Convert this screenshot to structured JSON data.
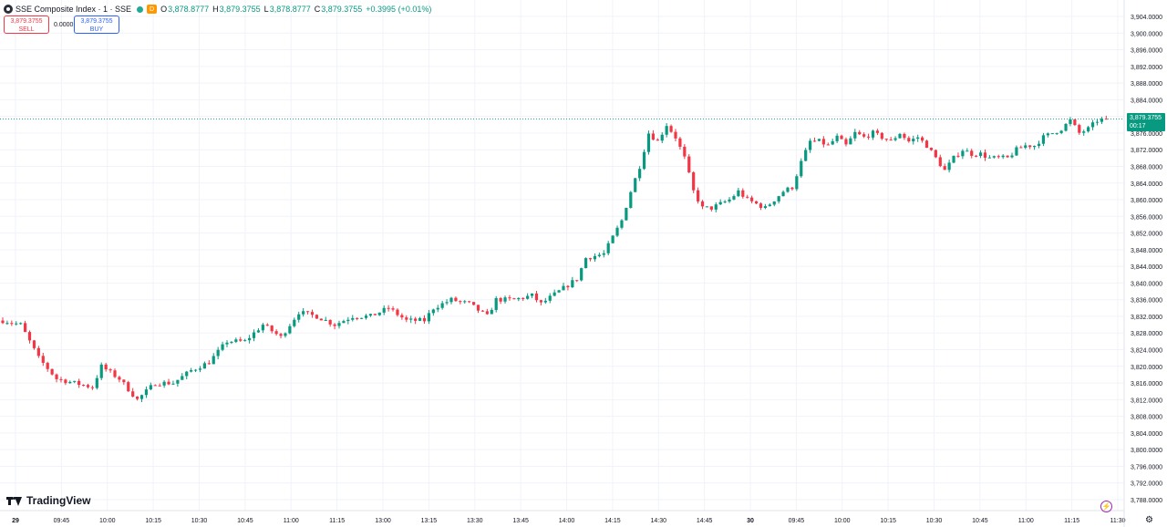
{
  "header": {
    "symbol": "SSE Composite Index · 1 · SSE",
    "d_badge": "D",
    "o_label": "O",
    "o_value": "3,878.8777",
    "h_label": "H",
    "h_value": "3,879.3755",
    "l_label": "L",
    "l_value": "3,878.8777",
    "c_label": "C",
    "c_value": "3,879.3755",
    "change": "+0.3995 (+0.01%)"
  },
  "trade": {
    "sell_price": "3,879.3755",
    "sell_label": "SELL",
    "spread": "0.0000",
    "buy_price": "3,879.3755",
    "buy_label": "BUY"
  },
  "last_price": {
    "value": "3,879.3755",
    "countdown": "00:17"
  },
  "brand": "TradingView",
  "colors": {
    "up": "#089981",
    "down": "#f23645",
    "grid": "#f0f3fa",
    "last_line": "#22ab94"
  },
  "chart_data": {
    "type": "candlestick",
    "title": "SSE Composite Index · 1 · SSE",
    "ylim": [
      3786,
      3906
    ],
    "y_ticks": [
      "3,788.0000",
      "3,792.0000",
      "3,796.0000",
      "3,800.0000",
      "3,804.0000",
      "3,808.0000",
      "3,812.0000",
      "3,816.0000",
      "3,820.0000",
      "3,824.0000",
      "3,828.0000",
      "3,832.0000",
      "3,836.0000",
      "3,840.0000",
      "3,844.0000",
      "3,848.0000",
      "3,852.0000",
      "3,856.0000",
      "3,860.0000",
      "3,864.0000",
      "3,868.0000",
      "3,872.0000",
      "3,876.0000",
      "3,880.0000",
      "3,884.0000",
      "3,888.0000",
      "3,892.0000",
      "3,896.0000",
      "3,900.0000",
      "3,904.0000"
    ],
    "x_ticks": [
      "29",
      "09:45",
      "10:00",
      "10:15",
      "10:30",
      "10:45",
      "11:00",
      "11:15",
      "13:00",
      "13:15",
      "13:30",
      "13:45",
      "14:00",
      "14:15",
      "14:30",
      "14:45",
      "30",
      "09:45",
      "10:00",
      "10:15",
      "10:30",
      "10:45",
      "11:00",
      "11:15",
      "11:30"
    ],
    "close_path": [
      [
        0,
        3831
      ],
      [
        4,
        3830
      ],
      [
        8,
        3822
      ],
      [
        12,
        3817
      ],
      [
        16,
        3816
      ],
      [
        20,
        3815
      ],
      [
        22,
        3820
      ],
      [
        26,
        3817
      ],
      [
        30,
        3812
      ],
      [
        34,
        3816
      ],
      [
        38,
        3816
      ],
      [
        42,
        3819
      ],
      [
        46,
        3821
      ],
      [
        50,
        3826
      ],
      [
        54,
        3826
      ],
      [
        58,
        3830
      ],
      [
        62,
        3827
      ],
      [
        66,
        3833
      ],
      [
        70,
        3832
      ],
      [
        74,
        3830
      ],
      [
        78,
        3832
      ],
      [
        82,
        3832
      ],
      [
        86,
        3834
      ],
      [
        90,
        3831
      ],
      [
        94,
        3831
      ],
      [
        96,
        3834
      ],
      [
        100,
        3836
      ],
      [
        104,
        3835
      ],
      [
        108,
        3832
      ],
      [
        110,
        3836
      ],
      [
        114,
        3836
      ],
      [
        118,
        3837
      ],
      [
        120,
        3835
      ],
      [
        124,
        3838
      ],
      [
        128,
        3841
      ],
      [
        130,
        3846
      ],
      [
        134,
        3847
      ],
      [
        136,
        3851
      ],
      [
        138,
        3855
      ],
      [
        140,
        3862
      ],
      [
        142,
        3868
      ],
      [
        144,
        3876
      ],
      [
        146,
        3874
      ],
      [
        148,
        3878
      ],
      [
        150,
        3875
      ],
      [
        152,
        3870
      ],
      [
        154,
        3862
      ],
      [
        156,
        3858
      ],
      [
        158,
        3858
      ],
      [
        160,
        3859
      ],
      [
        162,
        3860
      ],
      [
        164,
        3862
      ],
      [
        166,
        3860
      ],
      [
        168,
        3859
      ],
      [
        170,
        3858
      ],
      [
        172,
        3860
      ],
      [
        174,
        3862
      ],
      [
        176,
        3863
      ],
      [
        178,
        3869
      ],
      [
        180,
        3874
      ],
      [
        182,
        3874
      ],
      [
        184,
        3873
      ],
      [
        186,
        3875
      ],
      [
        188,
        3873
      ],
      [
        190,
        3876
      ],
      [
        192,
        3875
      ],
      [
        194,
        3876
      ],
      [
        196,
        3875
      ],
      [
        198,
        3874
      ],
      [
        200,
        3876
      ],
      [
        202,
        3874
      ],
      [
        204,
        3875
      ],
      [
        206,
        3873
      ],
      [
        208,
        3870
      ],
      [
        210,
        3867
      ],
      [
        212,
        3870
      ],
      [
        214,
        3872
      ],
      [
        216,
        3871
      ],
      [
        218,
        3871
      ],
      [
        220,
        3870
      ],
      [
        222,
        3870
      ],
      [
        224,
        3870
      ],
      [
        226,
        3872
      ],
      [
        228,
        3873
      ],
      [
        230,
        3873
      ],
      [
        232,
        3875
      ],
      [
        234,
        3876
      ],
      [
        236,
        3877
      ],
      [
        238,
        3879
      ],
      [
        240,
        3876
      ],
      [
        242,
        3877
      ],
      [
        244,
        3879
      ],
      [
        246,
        3879.3755
      ]
    ],
    "last_close": 3879.3755
  }
}
